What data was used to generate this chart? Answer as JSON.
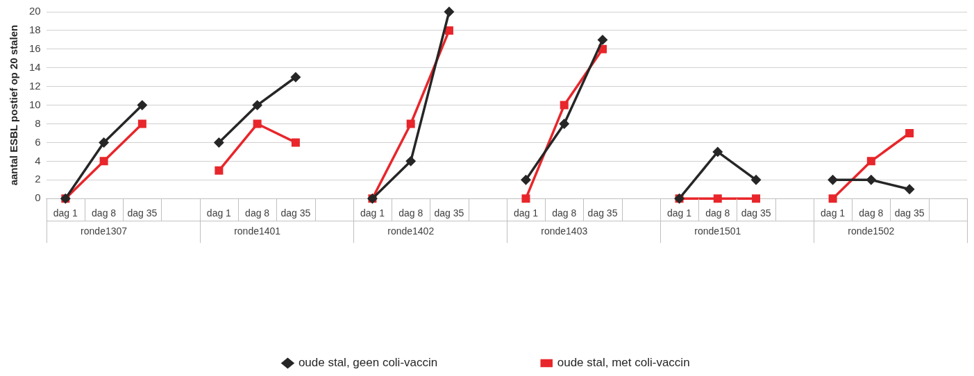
{
  "chart_data": {
    "type": "line",
    "ylabel": "aantal ESBL postief op 20 stalen",
    "categories": [
      "dag 1",
      "dag 8",
      "dag 35",
      null,
      "dag 1",
      "dag 8",
      "dag 35",
      null,
      "dag 1",
      "dag 8",
      "dag 35",
      null,
      "dag 1",
      "dag 8",
      "dag 35",
      null,
      "dag 1",
      "dag 8",
      "dag 35",
      null,
      "dag 1",
      "dag 8",
      "dag 35",
      null
    ],
    "annotations": [
      "ronde1307",
      "ronde1401",
      "ronde1402",
      "ronde1403",
      "ronde1501",
      "ronde1502"
    ],
    "series": [
      {
        "name": "oude stal, geen coli-vaccin",
        "color": "#262626",
        "marker": "diamond",
        "values": [
          0,
          6,
          10,
          null,
          6,
          10,
          13,
          null,
          0,
          4,
          20,
          null,
          2,
          8,
          17,
          null,
          0,
          5,
          2,
          null,
          2,
          2,
          1,
          null
        ]
      },
      {
        "name": "oude stal, met coli-vaccin",
        "color": "#e8262b",
        "marker": "square",
        "values": [
          0,
          4,
          8,
          null,
          3,
          8,
          6,
          null,
          0,
          8,
          18,
          null,
          0,
          10,
          16,
          null,
          0,
          0,
          0,
          null,
          0,
          4,
          7,
          null
        ]
      }
    ],
    "ylim": [
      0,
      20
    ],
    "yticks": [
      0,
      2,
      4,
      6,
      8,
      10,
      12,
      14,
      16,
      18,
      20
    ],
    "grid": "y",
    "legend": "bottom",
    "line_style": "solid"
  }
}
